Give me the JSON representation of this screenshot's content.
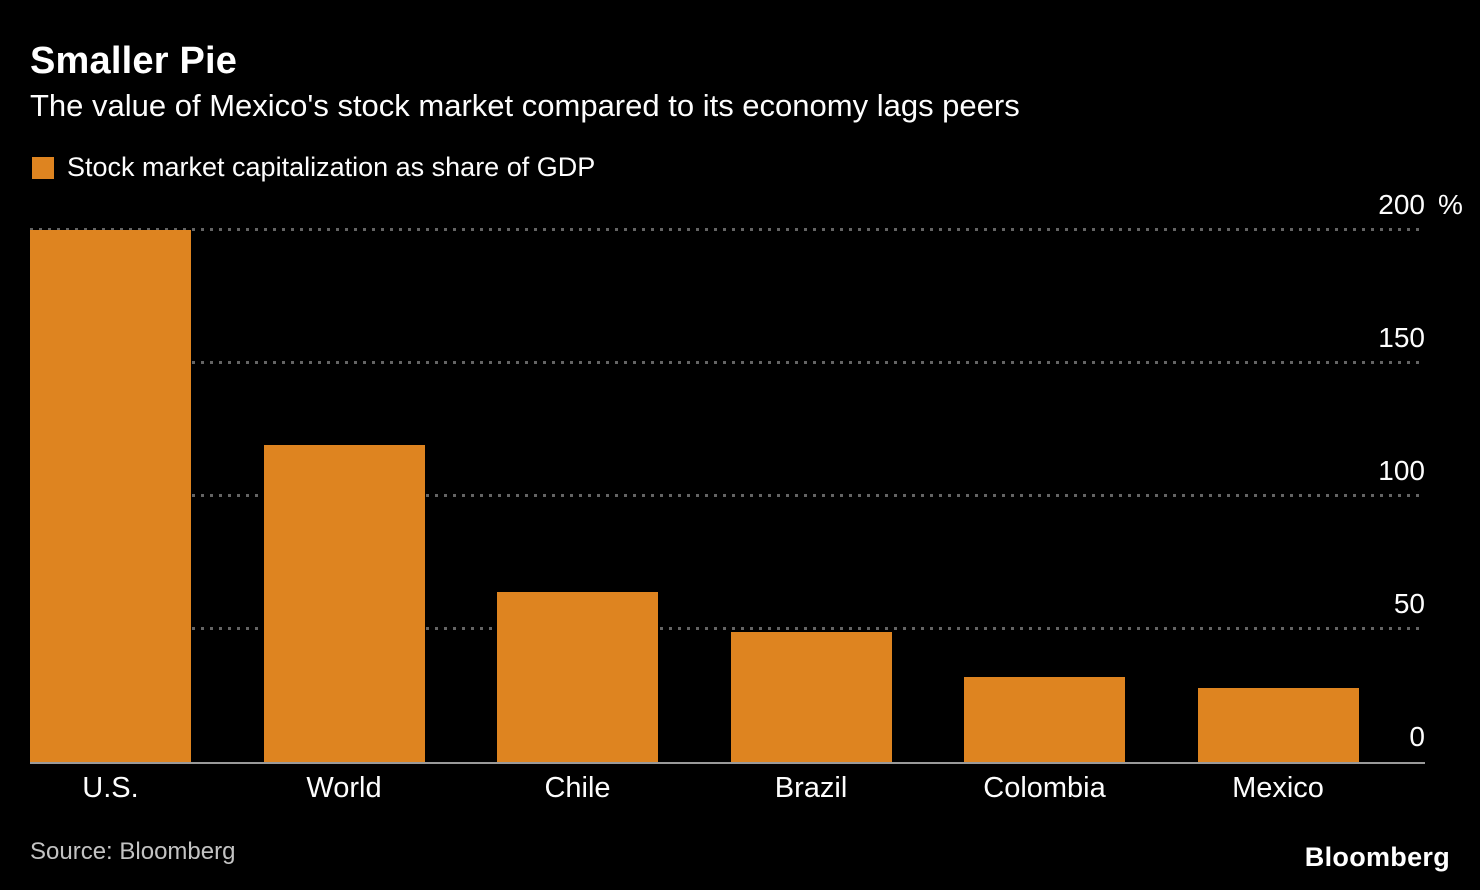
{
  "header": {
    "title": "Smaller Pie",
    "subtitle": "The value of Mexico's stock market compared to its economy lags peers",
    "legend_label": "Stock market capitalization as share of GDP"
  },
  "footer": {
    "source": "Source: Bloomberg",
    "brand": "Bloomberg"
  },
  "colors": {
    "background": "#000000",
    "bar": "#DE8420",
    "grid": "#646464",
    "axis": "#9A9A9A"
  },
  "chart_data": {
    "type": "bar",
    "title": "Smaller Pie",
    "subtitle": "The value of Mexico's stock market compared to its economy lags peers",
    "legend": [
      "Stock market capitalization as share of GDP"
    ],
    "categories": [
      "U.S.",
      "World",
      "Chile",
      "Brazil",
      "Colombia",
      "Mexico"
    ],
    "values": [
      200,
      119,
      64,
      49,
      32,
      28
    ],
    "unit": "%",
    "xlabel": "",
    "ylabel": "Stock market capitalization as share of GDP (%)",
    "ylim": [
      0,
      200
    ],
    "yticks": [
      {
        "value": 0,
        "label": "0"
      },
      {
        "value": 50,
        "label": "50"
      },
      {
        "value": 100,
        "label": "100"
      },
      {
        "value": 150,
        "label": "150"
      },
      {
        "value": 200,
        "label": "200",
        "suffix": "%"
      }
    ],
    "grid": "dotted-horizontal",
    "axis_side": "right",
    "legend_position": "top-left"
  }
}
